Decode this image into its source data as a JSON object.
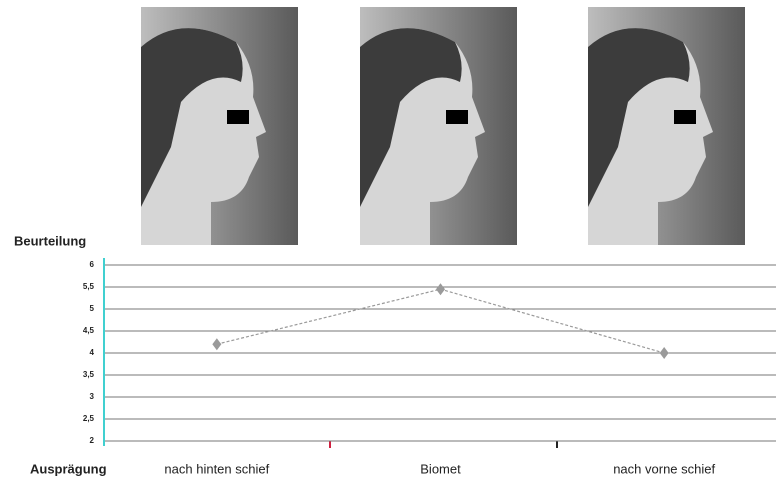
{
  "chart_data": {
    "type": "line",
    "y_axis_label": "Beurteilung",
    "x_axis_label": "Ausprägung",
    "categories": [
      "nach hinten schief",
      "Biomet",
      "nach vorne schief"
    ],
    "series": [
      {
        "color": "#9a9a9a",
        "values": [
          4.2,
          5.45,
          4.0
        ]
      }
    ],
    "ylim": [
      2,
      6
    ],
    "yticks": [
      2,
      {
        "value": 2.5,
        "label": "2,5"
      },
      3,
      {
        "value": 3.5,
        "label": "3,5"
      },
      4,
      {
        "value": 4.5,
        "label": "4,5"
      },
      5,
      {
        "value": 5.5,
        "label": "5,5"
      },
      6
    ],
    "grid": true
  }
}
